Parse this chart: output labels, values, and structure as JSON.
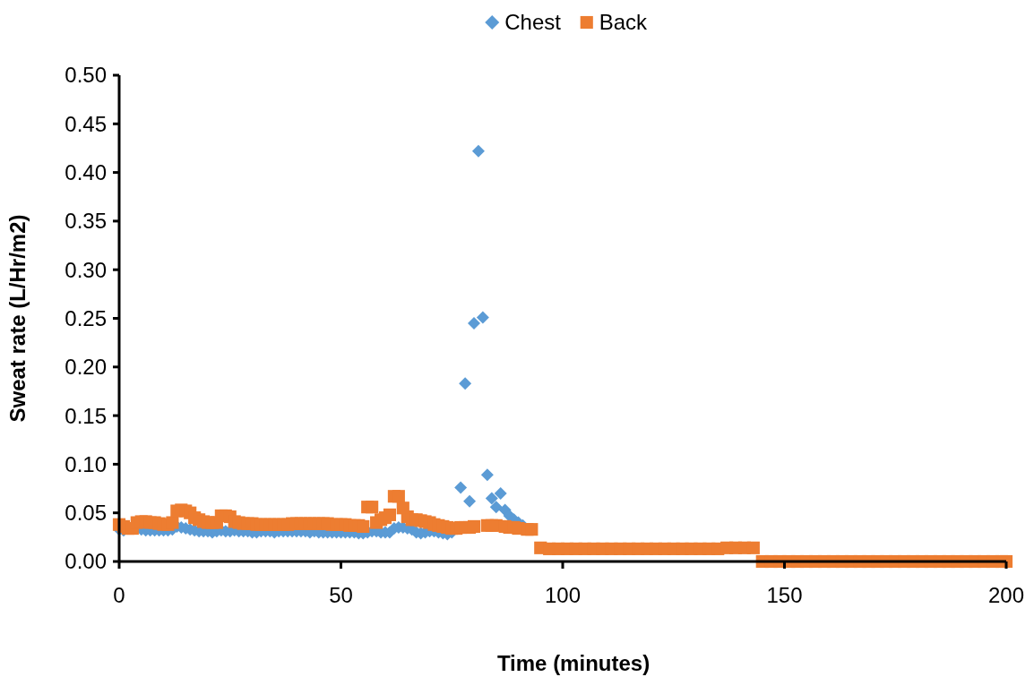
{
  "chart_data": {
    "type": "scatter",
    "xlabel": "Time (minutes)",
    "ylabel": "Sweat rate (L/Hr/m2)",
    "xlim": [
      0,
      200
    ],
    "xticks": [
      0,
      50,
      100,
      150,
      200
    ],
    "ylim": [
      0,
      0.5
    ],
    "yticks": [
      {
        "value": 0,
        "label": "0.00"
      },
      {
        "value": 0.05,
        "label": "0.05"
      },
      {
        "value": 0.1,
        "label": "0.10"
      },
      {
        "value": 0.15,
        "label": "0.15"
      },
      {
        "value": 0.2,
        "label": "0.20"
      },
      {
        "value": 0.25,
        "label": "0.25"
      },
      {
        "value": 0.3,
        "label": "0.30"
      },
      {
        "value": 0.35,
        "label": "0.35"
      },
      {
        "value": 0.4,
        "label": "0.40"
      },
      {
        "value": 0.45,
        "label": "0.45"
      },
      {
        "value": 0.5,
        "label": "0.50"
      }
    ],
    "grid": false,
    "legend": "top",
    "series": [
      {
        "name": "Chest",
        "color": "#5b9bd5",
        "marker": "diamond",
        "x": [
          0,
          1,
          5,
          6,
          7,
          8,
          9,
          10,
          11,
          12,
          13,
          14,
          15,
          16,
          17,
          18,
          19,
          20,
          21,
          22,
          23,
          24,
          25,
          26,
          27,
          28,
          29,
          30,
          31,
          32,
          33,
          34,
          35,
          36,
          37,
          38,
          39,
          40,
          41,
          42,
          43,
          44,
          45,
          46,
          47,
          48,
          49,
          50,
          51,
          52,
          53,
          54,
          55,
          56,
          57,
          58,
          59,
          60,
          61,
          62,
          63,
          64,
          65,
          66,
          67,
          68,
          69,
          70,
          71,
          72,
          73,
          74,
          75,
          77,
          78,
          79,
          80,
          81,
          82,
          83,
          84,
          85,
          86,
          87,
          88,
          89,
          90,
          91
        ],
        "values": [
          0.033,
          0.032,
          0.033,
          0.032,
          0.032,
          0.032,
          0.032,
          0.032,
          0.032,
          0.033,
          0.036,
          0.035,
          0.034,
          0.033,
          0.032,
          0.031,
          0.031,
          0.031,
          0.03,
          0.031,
          0.032,
          0.031,
          0.031,
          0.032,
          0.031,
          0.031,
          0.031,
          0.03,
          0.03,
          0.031,
          0.031,
          0.031,
          0.03,
          0.031,
          0.031,
          0.031,
          0.031,
          0.031,
          0.031,
          0.031,
          0.03,
          0.031,
          0.03,
          0.03,
          0.03,
          0.03,
          0.03,
          0.03,
          0.03,
          0.03,
          0.03,
          0.029,
          0.029,
          0.03,
          0.031,
          0.031,
          0.03,
          0.03,
          0.03,
          0.034,
          0.035,
          0.035,
          0.034,
          0.033,
          0.03,
          0.029,
          0.03,
          0.031,
          0.031,
          0.03,
          0.029,
          0.028,
          0.03,
          0.076,
          0.183,
          0.062,
          0.245,
          0.422,
          0.251,
          0.089,
          0.065,
          0.056,
          0.07,
          0.053,
          0.047,
          0.043,
          0.04,
          0.037
        ]
      },
      {
        "name": "Back",
        "color": "#ed7d31",
        "marker": "square",
        "x": [
          0,
          1,
          2,
          3,
          4,
          5,
          6,
          7,
          8,
          9,
          10,
          11,
          12,
          13,
          14,
          15,
          16,
          17,
          18,
          19,
          20,
          21,
          22,
          23,
          24,
          25,
          26,
          27,
          28,
          29,
          30,
          31,
          32,
          33,
          34,
          35,
          36,
          37,
          38,
          39,
          40,
          41,
          42,
          43,
          44,
          45,
          46,
          47,
          48,
          49,
          50,
          51,
          52,
          53,
          54,
          55,
          56,
          57,
          58,
          59,
          60,
          61,
          62,
          63,
          64,
          65,
          66,
          67,
          68,
          69,
          70,
          71,
          72,
          73,
          74,
          75,
          76,
          77,
          78,
          79,
          80,
          83,
          84,
          85,
          87,
          88,
          89,
          90,
          92,
          93,
          95,
          97,
          99,
          101,
          103,
          105,
          107,
          109,
          111,
          113,
          115,
          117,
          119,
          121,
          123,
          125,
          127,
          129,
          131,
          133,
          135,
          137,
          139,
          141,
          143,
          145,
          147,
          149,
          151,
          153,
          155,
          157,
          159,
          161,
          163,
          165,
          167,
          169,
          171,
          173,
          175,
          177,
          179,
          181,
          183,
          185,
          187,
          189,
          191,
          193,
          195,
          197,
          199,
          200
        ],
        "values": [
          0.038,
          0.036,
          0.034,
          0.034,
          0.04,
          0.041,
          0.041,
          0.04,
          0.04,
          0.039,
          0.038,
          0.038,
          0.04,
          0.052,
          0.053,
          0.052,
          0.05,
          0.045,
          0.043,
          0.041,
          0.04,
          0.04,
          0.04,
          0.047,
          0.047,
          0.046,
          0.041,
          0.04,
          0.039,
          0.039,
          0.039,
          0.038,
          0.038,
          0.038,
          0.038,
          0.038,
          0.038,
          0.038,
          0.038,
          0.039,
          0.039,
          0.039,
          0.039,
          0.039,
          0.039,
          0.039,
          0.039,
          0.039,
          0.038,
          0.038,
          0.038,
          0.038,
          0.037,
          0.037,
          0.037,
          0.036,
          0.056,
          0.056,
          0.04,
          0.043,
          0.045,
          0.048,
          0.067,
          0.067,
          0.055,
          0.046,
          0.043,
          0.043,
          0.042,
          0.041,
          0.04,
          0.038,
          0.037,
          0.036,
          0.035,
          0.034,
          0.034,
          0.035,
          0.035,
          0.035,
          0.036,
          0.037,
          0.037,
          0.037,
          0.036,
          0.035,
          0.035,
          0.034,
          0.033,
          0.033,
          0.014,
          0.013,
          0.013,
          0.013,
          0.013,
          0.013,
          0.013,
          0.013,
          0.013,
          0.013,
          0.013,
          0.013,
          0.013,
          0.013,
          0.013,
          0.013,
          0.013,
          0.013,
          0.013,
          0.013,
          0.013,
          0.014,
          0.014,
          0.014,
          0.014,
          0.0,
          0.0,
          0.0,
          0.0,
          0.0,
          0.0,
          0.0,
          0.0,
          0.0,
          0.0,
          0.0,
          0.0,
          0.0,
          0.0,
          0.0,
          0.0,
          0.0,
          0.0,
          0.0,
          0.0,
          0.0,
          0.0,
          0.0,
          0.0,
          0.0,
          0.0,
          0.0,
          0.0,
          0.0
        ]
      }
    ]
  }
}
